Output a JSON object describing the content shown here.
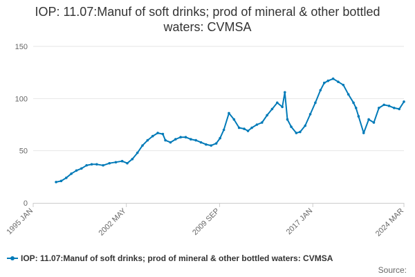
{
  "chart_data": {
    "type": "line",
    "title": "IOP: 11.07:Manuf of soft drinks; prod of mineral & other bottled waters: CVMSA",
    "xlabel": "",
    "ylabel": "",
    "ylim": [
      0,
      150
    ],
    "y_ticks": [
      0,
      50,
      100,
      150
    ],
    "y_tick_labels": [
      "0",
      "50",
      "100",
      "150"
    ],
    "x_range": [
      1995.0,
      2024.17
    ],
    "x_ticks": [
      1995.0,
      2002.33,
      2009.67,
      2017.0,
      2024.17
    ],
    "x_tick_labels": [
      "1995 JAN",
      "2002 MAY",
      "2009 SEP",
      "2017 JAN",
      "2024 MAR"
    ],
    "grid": true,
    "legend_position": "bottom-left",
    "series": [
      {
        "name": "IOP: 11.07:Manuf of soft drinks; prod of mineral & other bottled waters: CVMSA",
        "color": "#007ab8",
        "x": [
          1996.8,
          1997.2,
          1997.6,
          1998.0,
          1998.4,
          1998.8,
          1999.2,
          1999.6,
          2000.0,
          2000.5,
          2001.0,
          2001.5,
          2002.0,
          2002.4,
          2002.8,
          2003.2,
          2003.6,
          2004.0,
          2004.4,
          2004.8,
          2005.2,
          2005.4,
          2005.8,
          2006.2,
          2006.6,
          2007.0,
          2007.4,
          2007.8,
          2008.2,
          2008.6,
          2009.0,
          2009.4,
          2009.7,
          2010.0,
          2010.4,
          2010.8,
          2011.2,
          2011.6,
          2011.9,
          2012.2,
          2012.6,
          2013.0,
          2013.4,
          2013.8,
          2014.2,
          2014.6,
          2014.8,
          2015.0,
          2015.3,
          2015.7,
          2016.0,
          2016.4,
          2016.8,
          2017.2,
          2017.6,
          2017.9,
          2018.2,
          2018.6,
          2019.0,
          2019.4,
          2019.8,
          2020.2,
          2020.4,
          2020.6,
          2021.0,
          2021.4,
          2021.8,
          2022.2,
          2022.6,
          2023.0,
          2023.4,
          2023.8,
          2024.17
        ],
        "values": [
          20,
          21,
          24,
          28,
          31,
          33,
          36,
          37,
          37,
          36,
          38,
          39,
          40,
          38,
          42,
          48,
          55,
          60,
          64,
          67,
          66,
          60,
          58,
          61,
          63,
          63,
          61,
          60,
          58,
          56,
          55,
          57,
          62,
          70,
          86,
          80,
          72,
          71,
          69,
          72,
          75,
          77,
          84,
          90,
          96,
          92,
          106,
          80,
          73,
          67,
          68,
          74,
          85,
          96,
          108,
          115,
          117,
          119,
          116,
          113,
          104,
          96,
          91,
          83,
          67,
          80,
          77,
          91,
          94,
          93,
          91,
          90,
          97
        ]
      }
    ]
  },
  "legend": {
    "label": "IOP: 11.07:Manuf of soft drinks; prod of mineral & other bottled waters: CVMSA"
  },
  "source": {
    "label": "Source:"
  }
}
